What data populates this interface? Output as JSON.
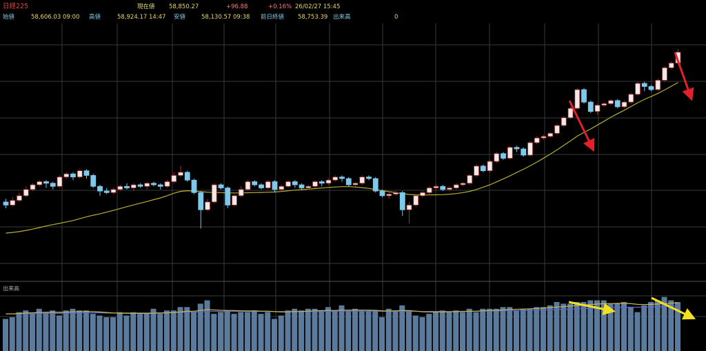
{
  "header": {
    "title": "日経225",
    "current_label": "現在値",
    "current_value": "58,850.27",
    "change": "+96.88",
    "change_pct": "+0.16%",
    "datetime": "26/02/27  15:45",
    "open_label": "始値",
    "open_value": "58,606.03  09:00",
    "high_label": "高値",
    "high_value": "58,924.17  14:47",
    "low_label": "安値",
    "low_value": "58,130.57  09:38",
    "prev_label": "前日終値",
    "prev_value": "58,753.39",
    "volume_label": "出来高",
    "volume_value": "0"
  },
  "volume_panel": {
    "label": "出来高"
  },
  "colors": {
    "background": "#000000",
    "grid": "#3a3a3a",
    "up": "#f2e8e8",
    "up_border": "#a03030",
    "down": "#7ec8ec",
    "ma": "#b8b030",
    "volume_bar": "#5c7a9c",
    "volume_ma1": "#c8b848",
    "volume_ma2": "#5a6ad8",
    "arrow_red": "#e5202a",
    "arrow_yellow": "#f0e020"
  },
  "chart_data": {
    "type": "candlestick",
    "candles": [
      [
        50,
        48,
        52,
        46
      ],
      [
        48,
        51,
        53,
        47
      ],
      [
        51,
        54,
        56,
        50
      ],
      [
        54,
        58,
        60,
        53
      ],
      [
        58,
        61,
        62,
        57
      ],
      [
        61,
        63,
        64,
        60
      ],
      [
        63,
        62,
        64,
        59
      ],
      [
        62,
        60,
        63,
        58
      ],
      [
        60,
        66,
        67,
        59
      ],
      [
        66,
        68,
        69,
        65
      ],
      [
        68,
        66,
        69,
        64
      ],
      [
        66,
        70,
        71,
        65
      ],
      [
        70,
        67,
        71,
        65
      ],
      [
        67,
        60,
        68,
        59
      ],
      [
        60,
        57,
        61,
        54
      ],
      [
        57,
        56,
        59,
        55
      ],
      [
        56,
        58,
        59,
        55
      ],
      [
        58,
        60,
        61,
        57
      ],
      [
        60,
        59,
        62,
        58
      ],
      [
        59,
        61,
        62,
        57
      ],
      [
        61,
        60,
        62,
        59
      ],
      [
        60,
        62,
        63,
        58
      ],
      [
        62,
        61,
        63,
        60
      ],
      [
        61,
        60,
        62,
        58
      ],
      [
        60,
        63,
        64,
        59
      ],
      [
        63,
        67,
        69,
        62
      ],
      [
        67,
        69,
        73,
        66
      ],
      [
        69,
        64,
        70,
        63
      ],
      [
        64,
        56,
        65,
        55
      ],
      [
        56,
        45,
        57,
        33
      ],
      [
        45,
        50,
        52,
        44
      ],
      [
        50,
        61,
        62,
        49
      ],
      [
        61,
        59,
        62,
        58
      ],
      [
        59,
        48,
        60,
        46
      ],
      [
        48,
        54,
        55,
        47
      ],
      [
        54,
        58,
        60,
        53
      ],
      [
        58,
        63,
        64,
        57
      ],
      [
        63,
        61,
        64,
        60
      ],
      [
        61,
        59,
        62,
        58
      ],
      [
        59,
        63,
        64,
        58
      ],
      [
        63,
        58,
        64,
        56
      ],
      [
        58,
        60,
        61,
        57
      ],
      [
        60,
        63,
        64,
        59
      ],
      [
        63,
        61,
        64,
        59
      ],
      [
        61,
        59,
        62,
        58
      ],
      [
        59,
        60,
        61,
        58
      ],
      [
        60,
        63,
        64,
        59
      ],
      [
        63,
        62,
        64,
        60
      ],
      [
        62,
        64,
        65,
        61
      ],
      [
        64,
        66,
        67,
        63
      ],
      [
        66,
        65,
        67,
        63
      ],
      [
        65,
        61,
        66,
        60
      ],
      [
        61,
        62,
        63,
        60
      ],
      [
        62,
        66,
        67,
        61
      ],
      [
        66,
        65,
        67,
        64
      ],
      [
        65,
        57,
        66,
        56
      ],
      [
        57,
        54,
        58,
        53
      ],
      [
        54,
        55,
        57,
        52
      ],
      [
        55,
        56,
        57,
        54
      ],
      [
        56,
        45,
        57,
        41
      ],
      [
        45,
        48,
        50,
        36
      ],
      [
        48,
        54,
        55,
        47
      ],
      [
        54,
        56,
        57,
        53
      ],
      [
        56,
        59,
        60,
        55
      ],
      [
        59,
        60,
        61,
        58
      ],
      [
        60,
        58,
        61,
        57
      ],
      [
        58,
        59,
        60,
        57
      ],
      [
        59,
        61,
        62,
        58
      ],
      [
        61,
        62,
        63,
        60
      ],
      [
        62,
        67,
        68,
        61
      ],
      [
        67,
        73,
        74,
        66
      ],
      [
        73,
        70,
        74,
        69
      ],
      [
        70,
        76,
        77,
        69
      ],
      [
        76,
        81,
        82,
        75
      ],
      [
        81,
        78,
        82,
        77
      ],
      [
        78,
        85,
        86,
        77
      ],
      [
        85,
        84,
        86,
        82
      ],
      [
        84,
        80,
        85,
        79
      ],
      [
        80,
        88,
        89,
        79
      ],
      [
        88,
        91,
        92,
        87
      ],
      [
        91,
        92,
        93,
        90
      ],
      [
        92,
        94,
        95,
        91
      ],
      [
        94,
        99,
        100,
        93
      ],
      [
        99,
        104,
        105,
        98
      ],
      [
        104,
        110,
        111,
        103
      ],
      [
        110,
        122,
        123,
        109
      ],
      [
        122,
        114,
        123,
        113
      ],
      [
        114,
        108,
        115,
        107
      ],
      [
        108,
        112,
        113,
        106
      ],
      [
        112,
        113,
        114,
        111
      ],
      [
        113,
        115,
        116,
        112
      ],
      [
        115,
        111,
        116,
        110
      ],
      [
        111,
        114,
        115,
        110
      ],
      [
        114,
        119,
        120,
        113
      ],
      [
        119,
        126,
        127,
        118
      ],
      [
        126,
        124,
        127,
        121
      ],
      [
        124,
        122,
        125,
        121
      ],
      [
        122,
        128,
        129,
        121
      ],
      [
        128,
        136,
        137,
        127
      ],
      [
        136,
        139,
        140,
        135
      ],
      [
        139,
        146,
        148,
        138
      ]
    ],
    "moving_average": [
      30,
      30.5,
      31,
      31.8,
      32.6,
      33.6,
      34.6,
      35.5,
      36.3,
      37.2,
      38.1,
      39.3,
      40.5,
      41.5,
      42.4,
      43.5,
      44.6,
      45.8,
      47,
      48.1,
      49.2,
      50.3,
      51.5,
      52.6,
      54,
      55.6,
      56.8,
      57.2,
      57.1,
      56.6,
      56.2,
      56.1,
      56,
      55.8,
      55.8,
      55.8,
      55.9,
      56,
      56.1,
      56.2,
      56.4,
      56.7,
      57.2,
      57.6,
      57.9,
      58.2,
      58.6,
      58.9,
      59.3,
      59.6,
      59.8,
      59.8,
      59.6,
      59.2,
      58.7,
      58,
      57.3,
      56.6,
      56,
      55.3,
      54.8,
      54.6,
      54.5,
      54.5,
      54.6,
      54.7,
      55,
      55.4,
      56,
      56.8,
      58,
      59.5,
      61,
      62.9,
      64.8,
      66.8,
      68.9,
      71,
      73.2,
      75.6,
      78.1,
      80.7,
      83.4,
      86.3,
      89.2,
      92.2,
      94.6,
      96.8,
      99.3,
      101.8,
      104.3,
      106.6,
      108.8,
      111.2,
      113.6,
      115.8,
      117.6,
      119.6,
      121.8,
      124.2,
      126.6
    ],
    "volume": [
      19,
      20,
      23,
      24,
      22,
      25,
      23,
      24,
      21,
      24,
      25,
      24,
      24,
      22,
      21,
      20,
      20,
      23,
      21,
      23,
      22,
      22,
      25,
      22,
      24,
      24,
      26,
      26,
      23,
      28,
      30,
      22,
      23,
      24,
      22,
      23,
      23,
      24,
      22,
      23,
      19,
      21,
      24,
      25,
      24,
      25,
      25,
      24,
      26,
      24,
      27,
      24,
      25,
      24,
      24,
      24,
      20,
      25,
      24,
      27,
      24,
      21,
      20,
      22,
      23,
      24,
      23,
      24,
      23,
      25,
      23,
      25,
      25,
      25,
      26,
      26,
      24,
      25,
      25,
      26,
      26,
      27,
      29,
      28,
      28,
      29,
      29,
      30,
      30,
      30,
      28,
      28,
      29,
      26,
      23,
      27,
      29,
      30,
      32,
      30,
      29
    ],
    "volume_ma1": [
      22,
      22,
      22.2,
      22.5,
      22.6,
      22.8,
      22.9,
      23,
      22.9,
      23,
      23.2,
      23.3,
      23.4,
      23.3,
      23.1,
      22.8,
      22.5,
      22.4,
      22.3,
      22.3,
      22.3,
      22.2,
      22.4,
      22.4,
      22.6,
      22.8,
      23.1,
      23.5,
      23.6,
      24,
      24.5,
      24.3,
      24.1,
      24,
      23.9,
      23.8,
      23.7,
      23.7,
      23.6,
      23.6,
      23.3,
      23.1,
      23.2,
      23.3,
      23.4,
      23.6,
      23.8,
      23.9,
      24,
      24,
      24.2,
      24.2,
      24.2,
      24.2,
      24.2,
      24.1,
      23.7,
      23.7,
      23.8,
      24,
      23.9,
      23.6,
      23.2,
      23.1,
      23.1,
      23.1,
      23.2,
      23.3,
      23.4,
      23.5,
      23.6,
      23.8,
      24,
      24.1,
      24.3,
      24.6,
      24.7,
      24.8,
      25,
      25.2,
      25.4,
      25.7,
      26,
      26.3,
      26.6,
      26.9,
      27.2,
      27.5,
      27.8,
      28,
      28.1,
      28.2,
      28.2,
      28,
      27.6,
      27.5,
      27.6,
      27.8,
      28.1,
      28.3,
      28.5
    ],
    "volume_ma2": [
      22,
      22,
      22,
      22.1,
      22.1,
      22.2,
      22.3,
      22.3,
      22.3,
      22.4,
      22.4,
      22.5,
      22.6,
      22.6,
      22.6,
      22.5,
      22.5,
      22.5,
      22.5,
      22.5,
      22.5,
      22.5,
      22.6,
      22.6,
      22.7,
      22.8,
      22.9,
      23,
      23.1,
      23.2,
      23.4,
      23.4,
      23.4,
      23.4,
      23.4,
      23.4,
      23.4,
      23.4,
      23.4,
      23.4,
      23.3,
      23.3,
      23.3,
      23.3,
      23.3,
      23.4,
      23.4,
      23.5,
      23.5,
      23.5,
      23.6,
      23.6,
      23.6,
      23.6,
      23.6,
      23.6,
      23.5,
      23.5,
      23.5,
      23.6,
      23.6,
      23.5,
      23.4,
      23.4,
      23.4,
      23.4,
      23.4,
      23.4,
      23.5,
      23.5,
      23.5,
      23.6,
      23.6,
      23.7,
      23.8,
      23.9,
      23.9,
      24,
      24.1,
      24.2,
      24.3,
      24.4,
      24.6,
      24.7,
      24.8,
      25,
      25.1,
      25.3,
      25.4,
      25.6,
      25.7,
      25.8,
      25.9,
      25.9,
      25.9,
      26,
      26.1,
      26.2,
      26.3,
      26.5,
      26.6
    ]
  }
}
